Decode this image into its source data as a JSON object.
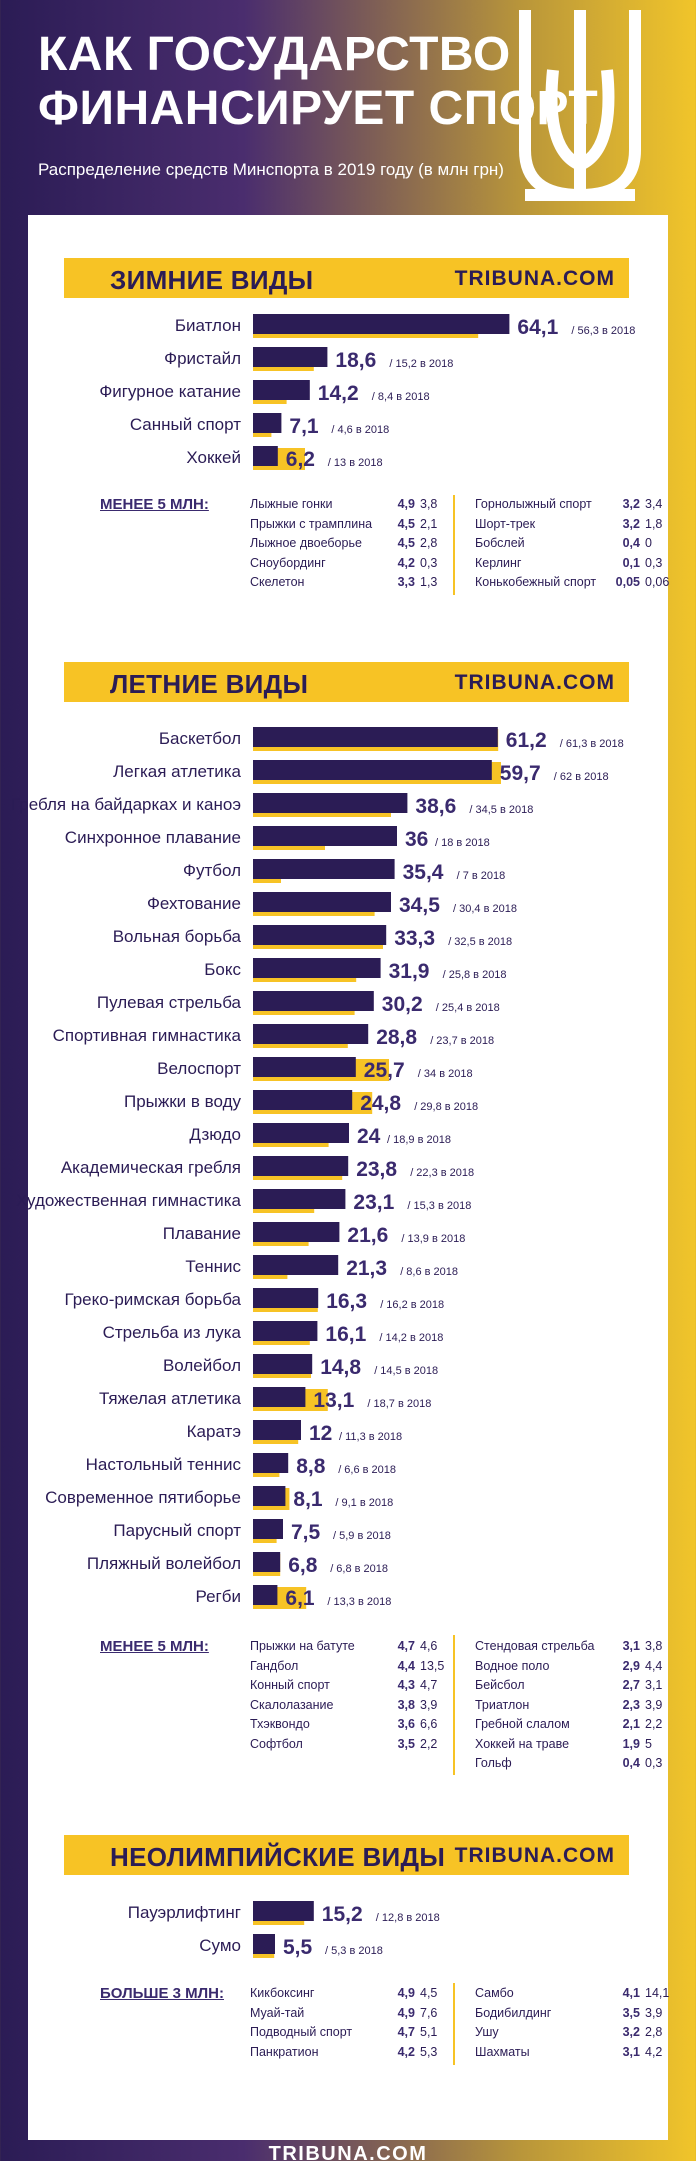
{
  "header": {
    "title_line1": "КАК ГОСУДАРСТВО",
    "title_line2": "ФИНАНСИРУЕТ СПОРТ",
    "subtitle": "Распределение средств Минспорта в 2019 году (в млн грн)"
  },
  "footer": {
    "brand": "TRIBUNA.COM"
  },
  "colors": {
    "bar_2019": "#2b1c55",
    "bar_2018": "#f7c325",
    "accent": "#f7c325"
  },
  "chart_data": [
    {
      "type": "bar",
      "section_title": "ЗИМНИЕ ВИДЫ",
      "brand": "TRIBUNA.COM",
      "categories": [
        "Биатлон",
        "Фристайл",
        "Фигурное катание",
        "Санный спорт",
        "Хоккей"
      ],
      "series": [
        {
          "values": [
            64.1,
            18.6,
            14.2,
            7.1,
            6.2
          ]
        },
        {
          "values": [
            56.3,
            15.2,
            8.4,
            4.6,
            13
          ]
        }
      ],
      "prev_suffix": " в 2018",
      "minor": {
        "label": "МЕНЕЕ 5 МЛН:",
        "col1": [
          {
            "name": "Лыжные гонки",
            "v2019": "4,9",
            "v2018": "3,8"
          },
          {
            "name": "Прыжки с трамплина",
            "v2019": "4,5",
            "v2018": "2,1"
          },
          {
            "name": "Лыжное двоеборье",
            "v2019": "4,5",
            "v2018": "2,8"
          },
          {
            "name": "Сноубординг",
            "v2019": "4,2",
            "v2018": "0,3"
          },
          {
            "name": "Скелетон",
            "v2019": "3,3",
            "v2018": "1,3"
          }
        ],
        "col2": [
          {
            "name": "Горнолыжный спорт",
            "v2019": "3,2",
            "v2018": "3,4"
          },
          {
            "name": "Шорт-трек",
            "v2019": "3,2",
            "v2018": "1,8"
          },
          {
            "name": "Бобслей",
            "v2019": "0,4",
            "v2018": "0"
          },
          {
            "name": "Керлинг",
            "v2019": "0,1",
            "v2018": "0,3"
          },
          {
            "name": "Конькобежный спорт",
            "v2019": "0,05",
            "v2018": "0,06"
          }
        ]
      }
    },
    {
      "type": "bar",
      "section_title": "ЛЕТНИЕ ВИДЫ",
      "brand": "TRIBUNA.COM",
      "categories": [
        "Баскетбол",
        "Легкая атлетика",
        "Гребля на байдарках и каноэ",
        "Синхронное плавание",
        "Футбол",
        "Фехтование",
        "Вольная борьба",
        "Бокс",
        "Пулевая стрельба",
        "Спортивная гимнастика",
        "Велоспорт",
        "Прыжки в воду",
        "Дзюдо",
        "Академическая гребля",
        "Художественная гимнастика",
        "Плавание",
        "Теннис",
        "Греко-римская борьба",
        "Стрельба из лука",
        "Волейбол",
        "Тяжелая атлетика",
        "Каратэ",
        "Настольный теннис",
        "Современное пятиборье",
        "Парусный спорт",
        "Пляжный волейбол",
        "Регби"
      ],
      "series": [
        {
          "values": [
            61.2,
            59.7,
            38.6,
            36,
            35.4,
            34.5,
            33.3,
            31.9,
            30.2,
            28.8,
            25.7,
            24.8,
            24,
            23.8,
            23.1,
            21.6,
            21.3,
            16.3,
            16.1,
            14.8,
            13.1,
            12,
            8.8,
            8.1,
            7.5,
            6.8,
            6.1
          ]
        },
        {
          "values": [
            61.3,
            62,
            34.5,
            18,
            7,
            30.4,
            32.5,
            25.8,
            25.4,
            23.7,
            34,
            29.8,
            18.9,
            22.3,
            15.3,
            13.9,
            8.6,
            16.2,
            14.2,
            14.5,
            18.7,
            11.3,
            6.6,
            9.1,
            5.9,
            6.8,
            13.3
          ]
        }
      ],
      "prev_suffix": " в 2018",
      "minor": {
        "label": "МЕНЕЕ 5 МЛН:",
        "col1": [
          {
            "name": "Прыжки на батуте",
            "v2019": "4,7",
            "v2018": "4,6"
          },
          {
            "name": "Гандбол",
            "v2019": "4,4",
            "v2018": "13,5"
          },
          {
            "name": "Конный спорт",
            "v2019": "4,3",
            "v2018": "4,7"
          },
          {
            "name": "Скалолазание",
            "v2019": "3,8",
            "v2018": "3,9"
          },
          {
            "name": "Тхэквондо",
            "v2019": "3,6",
            "v2018": "6,6"
          },
          {
            "name": "Софтбол",
            "v2019": "3,5",
            "v2018": "2,2"
          }
        ],
        "col2": [
          {
            "name": "Стендовая стрельба",
            "v2019": "3,1",
            "v2018": "3,8"
          },
          {
            "name": "Водное поло",
            "v2019": "2,9",
            "v2018": "4,4"
          },
          {
            "name": "Бейсбол",
            "v2019": "2,7",
            "v2018": "3,1"
          },
          {
            "name": "Триатлон",
            "v2019": "2,3",
            "v2018": "3,9"
          },
          {
            "name": "Гребной слалом",
            "v2019": "2,1",
            "v2018": "2,2"
          },
          {
            "name": "Хоккей на траве",
            "v2019": "1,9",
            "v2018": "5"
          },
          {
            "name": "Гольф",
            "v2019": "0,4",
            "v2018": "0,3"
          }
        ]
      }
    },
    {
      "type": "bar",
      "section_title": "НЕОЛИМПИЙСКИЕ ВИДЫ",
      "brand": "TRIBUNA.COM",
      "categories": [
        "Пауэрлифтинг",
        "Сумо"
      ],
      "series": [
        {
          "values": [
            15.2,
            5.5
          ]
        },
        {
          "values": [
            12.8,
            5.3
          ]
        }
      ],
      "prev_suffix": " в 2018",
      "minor": {
        "label": "БОЛЬШЕ 3 МЛН:",
        "col1": [
          {
            "name": "Кикбоксинг",
            "v2019": "4,9",
            "v2018": "4,5"
          },
          {
            "name": "Муай-тай",
            "v2019": "4,9",
            "v2018": "7,6"
          },
          {
            "name": "Подводный спорт",
            "v2019": "4,7",
            "v2018": "5,1"
          },
          {
            "name": "Панкратион",
            "v2019": "4,2",
            "v2018": "5,3"
          }
        ],
        "col2": [
          {
            "name": "Самбо",
            "v2019": "4,1",
            "v2018": "14,1"
          },
          {
            "name": "Бодибилдинг",
            "v2019": "3,5",
            "v2018": "3,9"
          },
          {
            "name": "Ушу",
            "v2019": "3,2",
            "v2018": "2,8"
          },
          {
            "name": "Шахматы",
            "v2019": "3,1",
            "v2018": "4,2"
          }
        ]
      }
    }
  ]
}
